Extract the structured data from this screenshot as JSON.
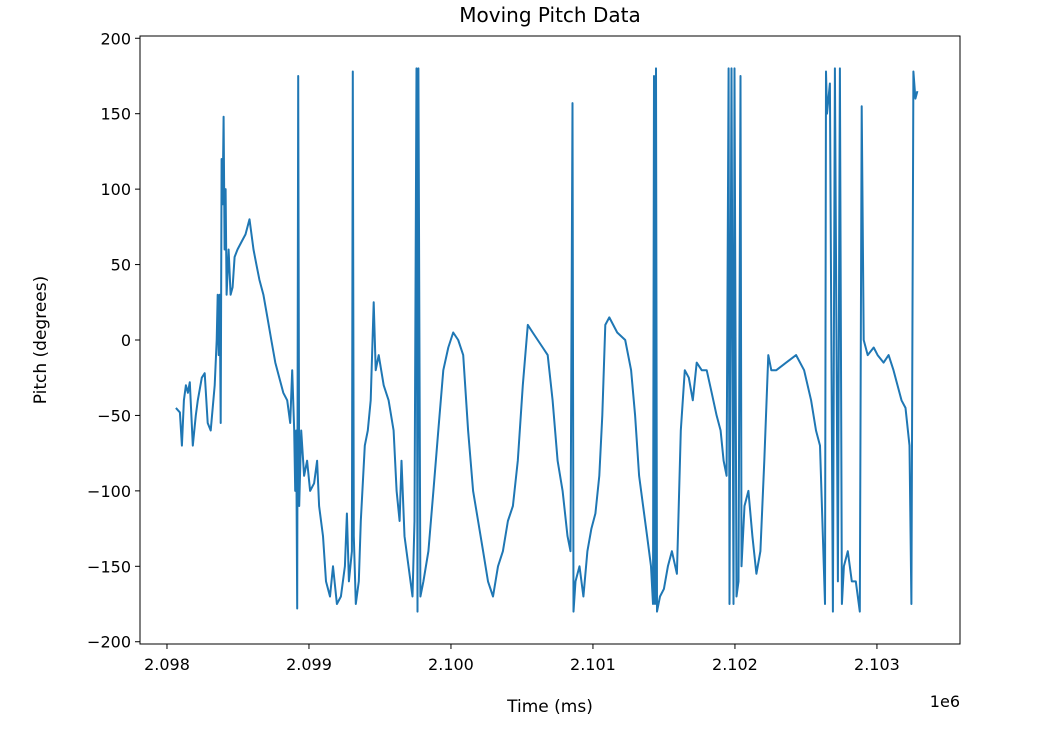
{
  "chart_data": {
    "type": "line",
    "title": "Moving Pitch Data",
    "x_label": "Time (ms)",
    "y_label": "Pitch (degrees)",
    "x_offset_label": "1e6",
    "color": "#1f77b4",
    "xlim": [
      2097810,
      2103585
    ],
    "ylim": [
      -201.5,
      201.5
    ],
    "xticks": [
      {
        "value": 2098000,
        "label": "2.098"
      },
      {
        "value": 2099000,
        "label": "2.099"
      },
      {
        "value": 2100000,
        "label": "2.100"
      },
      {
        "value": 2101000,
        "label": "2.101"
      },
      {
        "value": 2102000,
        "label": "2.102"
      },
      {
        "value": 2103000,
        "label": "2.103"
      }
    ],
    "yticks": [
      {
        "value": -200,
        "label": "−200"
      },
      {
        "value": -150,
        "label": "−150"
      },
      {
        "value": -100,
        "label": "−100"
      },
      {
        "value": -50,
        "label": "−50"
      },
      0,
      50,
      100,
      150,
      200
    ],
    "x": [
      2098063,
      2098091,
      2098105,
      2098119,
      2098133,
      2098147,
      2098161,
      2098182,
      2098203,
      2098217,
      2098245,
      2098266,
      2098287,
      2098308,
      2098322,
      2098336,
      2098350,
      2098357,
      2098364,
      2098371,
      2098378,
      2098385,
      2098392,
      2098399,
      2098406,
      2098413,
      2098420,
      2098434,
      2098448,
      2098462,
      2098476,
      2098497,
      2098525,
      2098553,
      2098581,
      2098609,
      2098630,
      2098651,
      2098679,
      2098707,
      2098735,
      2098763,
      2098791,
      2098819,
      2098847,
      2098868,
      2098882,
      2098896,
      2098903,
      2098910,
      2098917,
      2098924,
      2098931,
      2098945,
      2098966,
      2098987,
      2099008,
      2099036,
      2099057,
      2099071,
      2099099,
      2099120,
      2099148,
      2099169,
      2099197,
      2099225,
      2099253,
      2099267,
      2099281,
      2099302,
      2099309,
      2099316,
      2099330,
      2099351,
      2099365,
      2099393,
      2099414,
      2099435,
      2099456,
      2099470,
      2099491,
      2099526,
      2099561,
      2099596,
      2099617,
      2099638,
      2099652,
      2099673,
      2099701,
      2099729,
      2099743,
      2099757,
      2099764,
      2099771,
      2099785,
      2099806,
      2099841,
      2099876,
      2099911,
      2099946,
      2099981,
      2100016,
      2100051,
      2100086,
      2100121,
      2100156,
      2100191,
      2100226,
      2100261,
      2100296,
      2100331,
      2100366,
      2100401,
      2100436,
      2100471,
      2100506,
      2100541,
      2100576,
      2100611,
      2100646,
      2100681,
      2100716,
      2100751,
      2100786,
      2100821,
      2100842,
      2100856,
      2100863,
      2100877,
      2100905,
      2100933,
      2100961,
      2100989,
      2101017,
      2101045,
      2101066,
      2101087,
      2101115,
      2101171,
      2101227,
      2101269,
      2101297,
      2101325,
      2101353,
      2101381,
      2101409,
      2101423,
      2101430,
      2101437,
      2101444,
      2101451,
      2101472,
      2101500,
      2101528,
      2101556,
      2101591,
      2101619,
      2101647,
      2101675,
      2101703,
      2101731,
      2101766,
      2101801,
      2101836,
      2101871,
      2101899,
      2101920,
      2101941,
      2101955,
      2101962,
      2101976,
      2101990,
      2101997,
      2102011,
      2102025,
      2102039,
      2102046,
      2102067,
      2102095,
      2102123,
      2102151,
      2102179,
      2102207,
      2102235,
      2102256,
      2102291,
      2102361,
      2102431,
      2102487,
      2102536,
      2102571,
      2102599,
      2102634,
      2102641,
      2102648,
      2102669,
      2102690,
      2102704,
      2102725,
      2102739,
      2102753,
      2102767,
      2102795,
      2102823,
      2102851,
      2102879,
      2102893,
      2102907,
      2102935,
      2102977,
      2103005,
      2103047,
      2103082,
      2103117,
      2103145,
      2103173,
      2103201,
      2103229,
      2103243,
      2103257,
      2103271,
      2103285
    ],
    "values": [
      -45,
      -48,
      -70,
      -40,
      -30,
      -35,
      -28,
      -70,
      -50,
      -40,
      -25,
      -22,
      -55,
      -60,
      -45,
      -30,
      0,
      30,
      -10,
      30,
      -55,
      120,
      90,
      148,
      60,
      100,
      30,
      60,
      30,
      35,
      55,
      60,
      65,
      70,
      80,
      60,
      50,
      40,
      30,
      15,
      0,
      -15,
      -25,
      -35,
      -40,
      -55,
      -20,
      -60,
      -100,
      -60,
      -178,
      175,
      -110,
      -60,
      -90,
      -80,
      -100,
      -95,
      -80,
      -110,
      -130,
      -160,
      -170,
      -150,
      -175,
      -170,
      -150,
      -115,
      -160,
      -140,
      178,
      -130,
      -175,
      -160,
      -120,
      -70,
      -60,
      -40,
      25,
      -20,
      -10,
      -30,
      -40,
      -60,
      -100,
      -120,
      -80,
      -130,
      -150,
      -170,
      -120,
      180,
      -180,
      180,
      -170,
      -160,
      -140,
      -100,
      -60,
      -20,
      -5,
      5,
      0,
      -10,
      -60,
      -100,
      -120,
      -140,
      -160,
      -170,
      -150,
      -140,
      -120,
      -110,
      -80,
      -30,
      10,
      5,
      0,
      -5,
      -10,
      -40,
      -80,
      -100,
      -130,
      -140,
      157,
      -180,
      -160,
      -150,
      -170,
      -140,
      -125,
      -115,
      -90,
      -50,
      10,
      15,
      5,
      0,
      -20,
      -50,
      -90,
      -110,
      -130,
      -150,
      -175,
      175,
      -175,
      180,
      -180,
      -170,
      -165,
      -150,
      -140,
      -155,
      -60,
      -20,
      -25,
      -40,
      -15,
      -20,
      -20,
      -35,
      -50,
      -60,
      -80,
      -90,
      180,
      -175,
      180,
      -175,
      180,
      -170,
      -160,
      175,
      -150,
      -110,
      -100,
      -130,
      -155,
      -140,
      -80,
      -10,
      -20,
      -20,
      -15,
      -10,
      -20,
      -40,
      -60,
      -70,
      -175,
      178,
      150,
      170,
      -180,
      180,
      -160,
      180,
      -175,
      -150,
      -140,
      -160,
      -160,
      -180,
      155,
      0,
      -10,
      -5,
      -10,
      -15,
      -10,
      -20,
      -30,
      -40,
      -45,
      -70,
      -175,
      178,
      160,
      165
    ]
  }
}
